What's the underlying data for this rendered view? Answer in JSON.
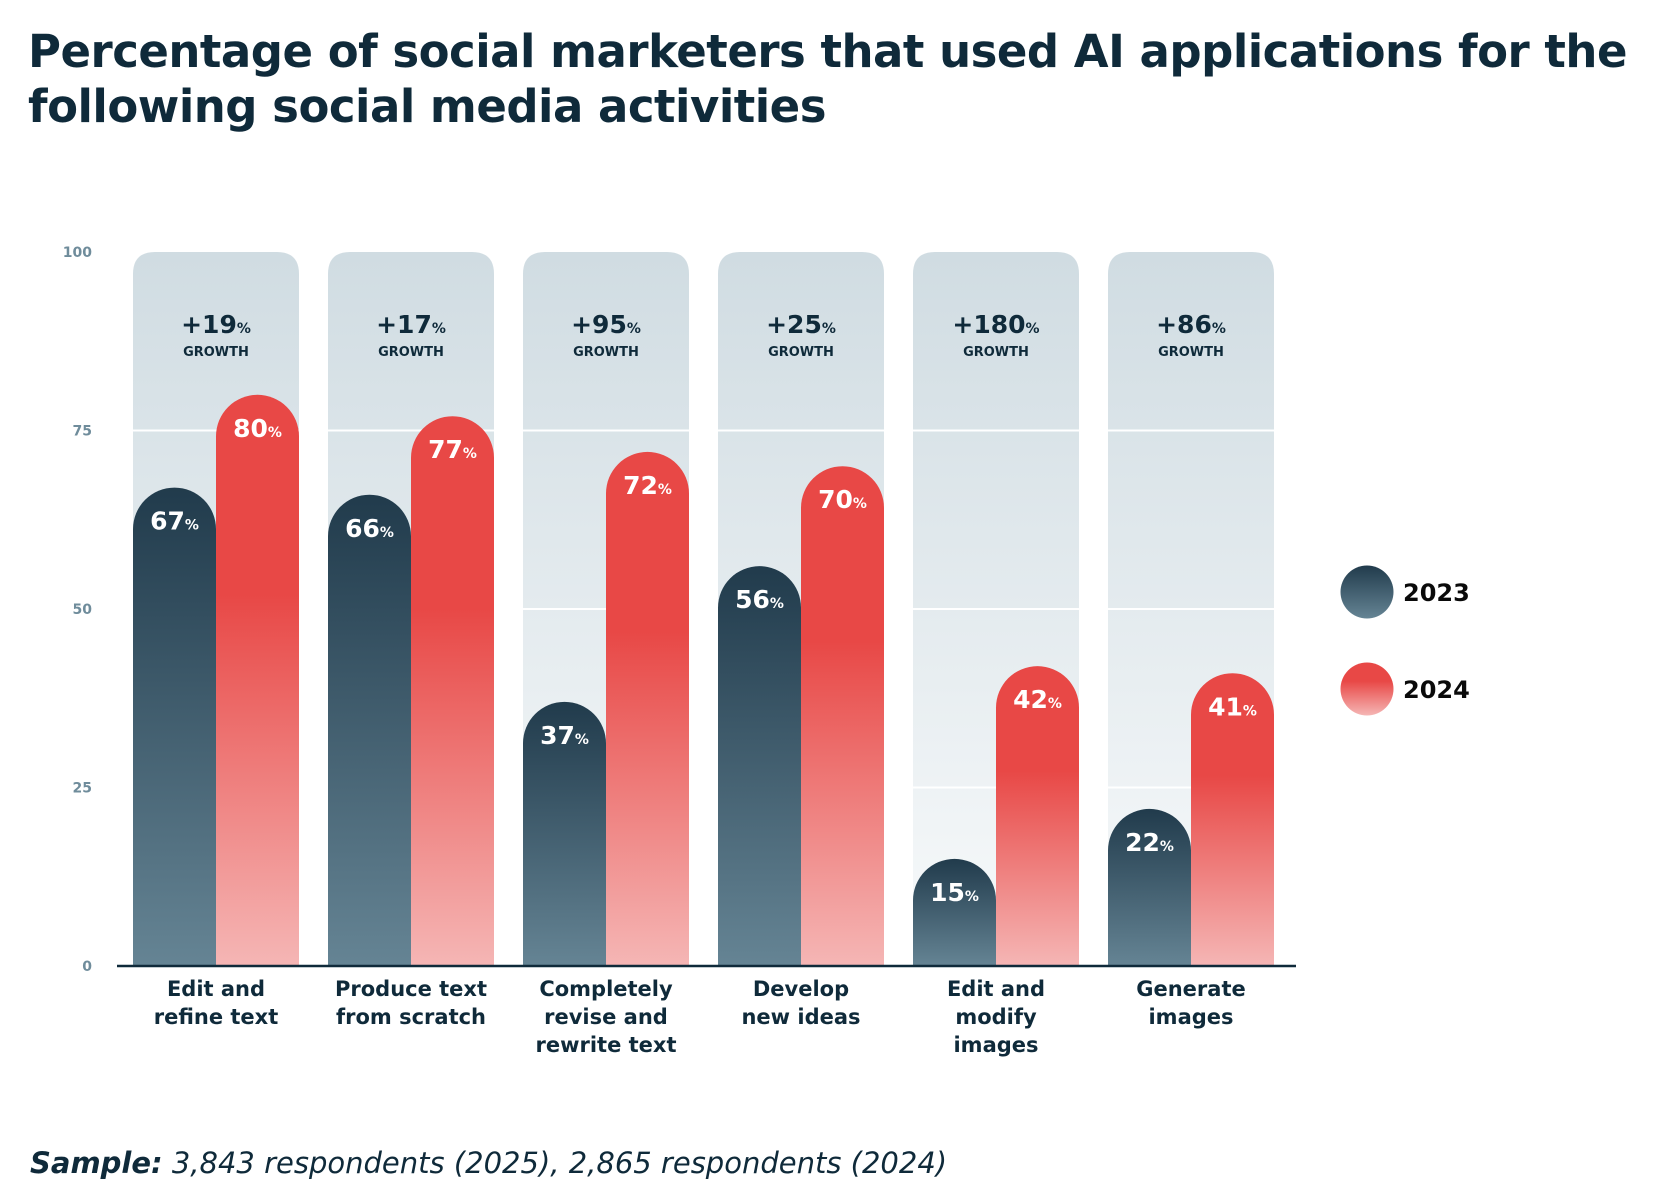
{
  "title": "Percentage of social marketers that used AI applications for the following social media activities",
  "footnote": {
    "lead": "Sample:",
    "text": " 3,843 respondents (2025), 2,865 respondents (2024)"
  },
  "colors": {
    "series_2023_top": "#213b4c",
    "series_2023_bottom": "#658494",
    "series_2024_top": "#e84846",
    "series_2024_bottom": "#f5b6b5",
    "panel_top": "#d0dce2",
    "panel_bottom": "#f8fafb",
    "text_dark": "#0f2a3a",
    "axis_text": "#6f8c9b"
  },
  "chart_data": {
    "type": "bar",
    "title": "Percentage of social marketers that used AI applications for the following social media activities",
    "xlabel": "",
    "ylabel": "",
    "ylim": [
      0,
      100
    ],
    "yticks": [
      0,
      25,
      50,
      75,
      100
    ],
    "grid": true,
    "legend_position": "right",
    "value_suffix": "%",
    "categories": [
      [
        "Edit and",
        "refine text"
      ],
      [
        "Produce text",
        "from scratch"
      ],
      [
        "Completely",
        "revise and",
        "rewrite text"
      ],
      [
        "Develop",
        "new ideas"
      ],
      [
        "Edit and",
        "modify",
        "images"
      ],
      [
        "Generate",
        "images"
      ]
    ],
    "series": [
      {
        "name": "2023",
        "values": [
          67,
          66,
          37,
          56,
          15,
          22
        ]
      },
      {
        "name": "2024",
        "values": [
          80,
          77,
          72,
          70,
          42,
          41
        ]
      }
    ],
    "growth": {
      "values": [
        "+19",
        "+17",
        "+95",
        "+25",
        "+180",
        "+86"
      ],
      "suffix": "%",
      "label": "GROWTH"
    }
  }
}
